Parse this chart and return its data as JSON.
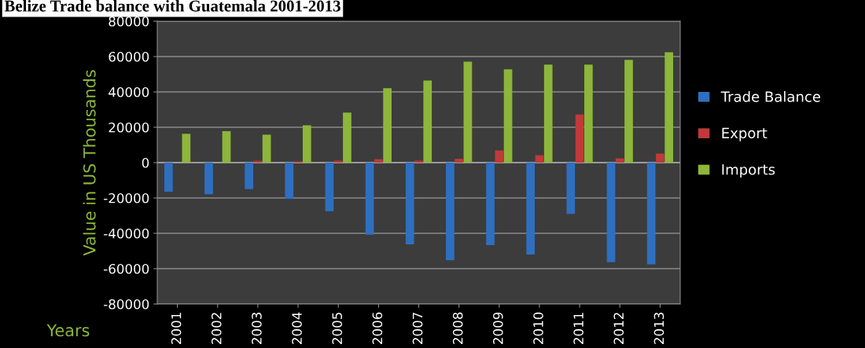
{
  "chart_data": {
    "type": "bar",
    "title": "Belize Trade balance with Guatemala 2001-2013",
    "ylabel": "Value in US Thousands",
    "xlabel": "Years",
    "categories": [
      "2001",
      "2002",
      "2003",
      "2004",
      "2005",
      "2006",
      "2007",
      "2008",
      "2009",
      "2010",
      "2011",
      "2012",
      "2013"
    ],
    "series": [
      {
        "name": "Trade Balance",
        "color": "#2f6fc0",
        "values": [
          -16500,
          -17900,
          -15000,
          -20500,
          -27500,
          -40800,
          -46200,
          -55200,
          -46700,
          -52000,
          -29000,
          -56300,
          -57600
        ]
      },
      {
        "name": "Export",
        "color": "#c0393b",
        "values": [
          0,
          0,
          1000,
          700,
          1100,
          1900,
          1100,
          2100,
          6900,
          4200,
          27200,
          2400,
          5100
        ]
      },
      {
        "name": "Imports",
        "color": "#8db63a",
        "values": [
          16300,
          17800,
          15800,
          21100,
          28300,
          42100,
          46400,
          57100,
          52800,
          55500,
          55500,
          58100,
          62400
        ]
      }
    ],
    "ylim": [
      -80000,
      80000
    ],
    "yticks": [
      -80000,
      -60000,
      -40000,
      -20000,
      0,
      20000,
      40000,
      60000,
      80000
    ],
    "grid": "y",
    "legend": "right"
  }
}
